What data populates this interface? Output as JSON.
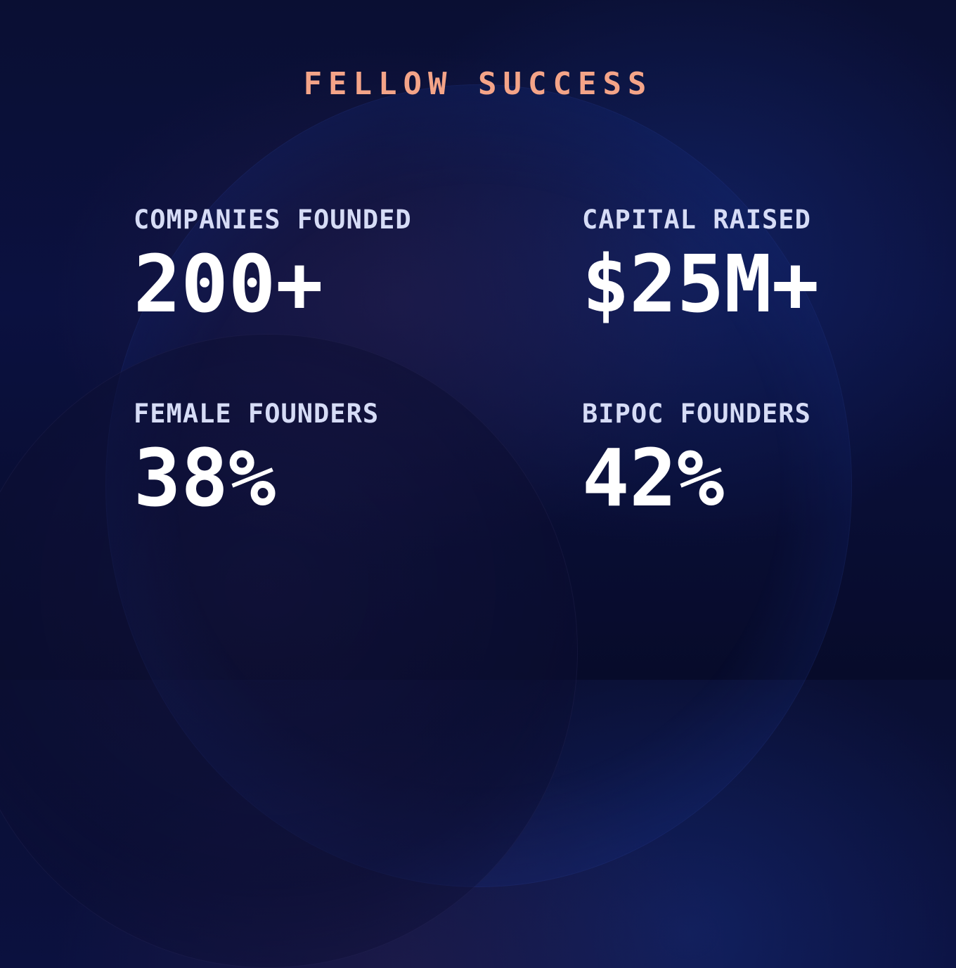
{
  "title": "FELLOW SUCCESS",
  "stats": [
    {
      "label": "COMPANIES FOUNDED",
      "value": "200+"
    },
    {
      "label": "CAPITAL RAISED",
      "value": "$25M+"
    },
    {
      "label": "FEMALE FOUNDERS",
      "value": "38%"
    },
    {
      "label": "BIPOC FOUNDERS",
      "value": "42%"
    }
  ],
  "colors": {
    "title": "#f4a488",
    "label": "#d6dcf6",
    "value": "#ffffff",
    "background": "#0a0f33"
  }
}
